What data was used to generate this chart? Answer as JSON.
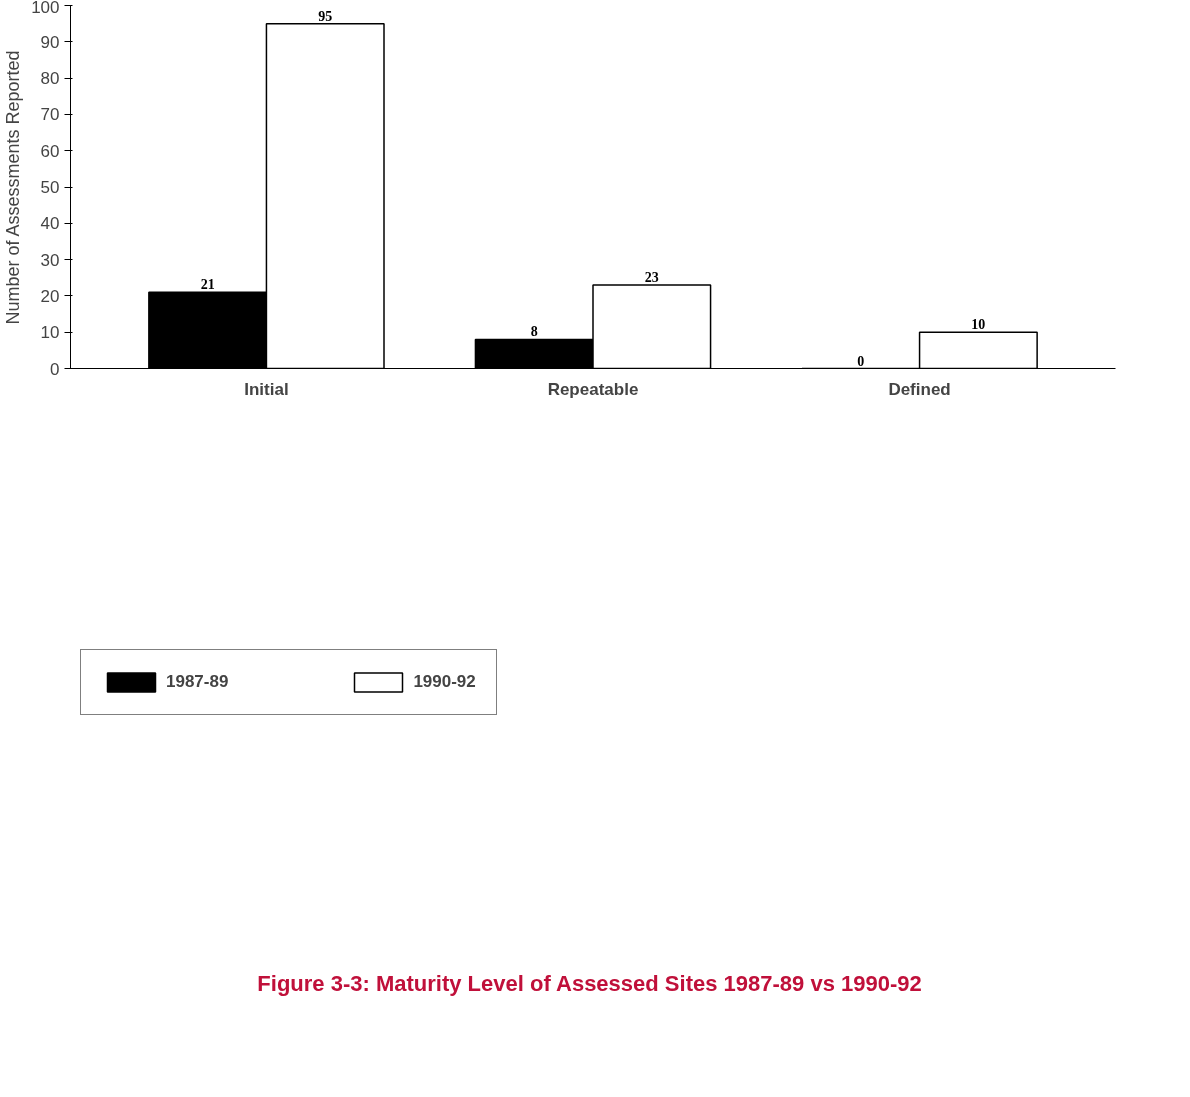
{
  "chart_data": {
    "type": "bar",
    "title": "Figure 3-3:  Maturity Level of Assessed Sites 1987-89 vs 1990-92",
    "ylabel": "Number of Assessments Reported",
    "categories": [
      "Initial",
      "Repeatable",
      "Defined"
    ],
    "series": [
      {
        "name": "1987-89",
        "color": "#000000",
        "values": [
          21,
          8,
          0
        ]
      },
      {
        "name": "1990-92",
        "color": "#ffffff",
        "values": [
          95,
          23,
          10
        ]
      }
    ],
    "ylim": [
      0,
      100
    ],
    "yticks": [
      0,
      10,
      20,
      30,
      40,
      50,
      60,
      70,
      80,
      90,
      100
    ],
    "data_labels": true,
    "grid": false,
    "legend": "bottom"
  }
}
